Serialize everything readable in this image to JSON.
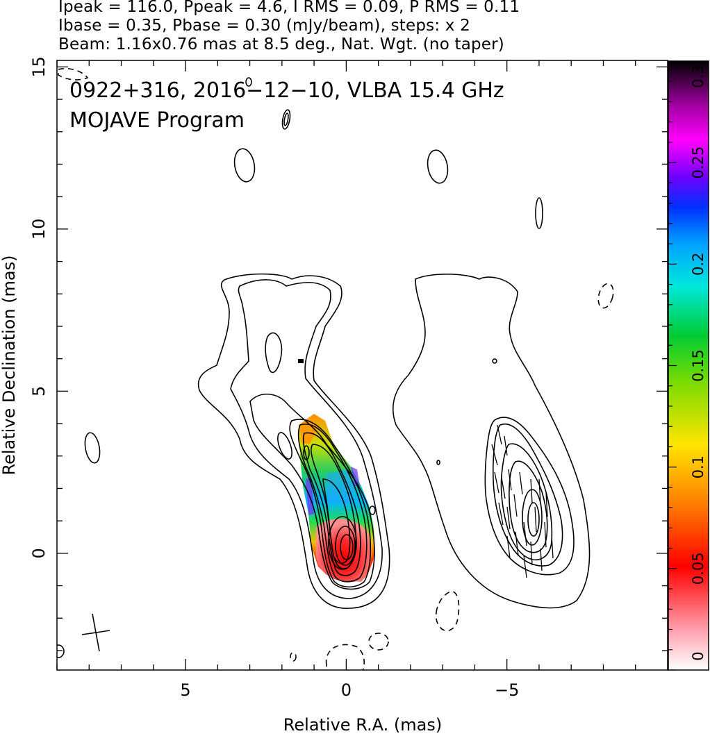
{
  "header": {
    "line1": "Ipeak = 116.0, Ppeak = 4.6, I RMS = 0.09, P RMS = 0.11",
    "line2": "Ibase = 0.35, Pbase = 0.30 (mJy/beam), steps: x 2",
    "line3": "Beam: 1.16x0.76 mas at 8.5 deg., Nat. Wgt. (no taper)"
  },
  "annotation": {
    "line1": "0922+316, 2016−12−10, VLBA 15.4 GHz",
    "line2": "MOJAVE Program"
  },
  "chart_data": {
    "type": "heatmap",
    "title": "0922+316, 2016−12−10, VLBA 15.4 GHz",
    "xlabel": "Relative R.A. (mas)",
    "ylabel": "Relative Declination (mas)",
    "xlim": [
      9.0,
      -10.0
    ],
    "ylim": [
      -3.6,
      15.2
    ],
    "x_ticks": [
      5,
      0,
      -5
    ],
    "x_tick_labels": [
      "5",
      "0",
      "−5"
    ],
    "y_ticks": [
      0,
      5,
      10,
      15
    ],
    "y_tick_labels": [
      "0",
      "5",
      "10",
      "15"
    ],
    "colorbar": {
      "range": [
        0,
        0.3
      ],
      "ticks": [
        0,
        0.05,
        0.1,
        0.15,
        0.2,
        0.25,
        0.3
      ],
      "tick_labels": [
        "0",
        "0.05",
        "0.1",
        "0.15",
        "0.2",
        "0.25",
        "0.3"
      ]
    },
    "beam": {
      "major_mas": 1.16,
      "minor_mas": 0.76,
      "pa_deg": 8.5
    },
    "intensity": {
      "peak_mJy_per_beam": 116.0,
      "rms_mJy_per_beam": 0.09,
      "base_mJy_per_beam": 0.35,
      "step_factor": 2
    },
    "polarization": {
      "peak_mJy_per_beam": 4.6,
      "rms_mJy_per_beam": 0.11,
      "base_mJy_per_beam": 0.3
    },
    "panels": [
      "total intensity contours with fractional polarization color",
      "polarized intensity contours with EVPA ticks (offset copy)"
    ],
    "grid": false,
    "legend": "none"
  }
}
